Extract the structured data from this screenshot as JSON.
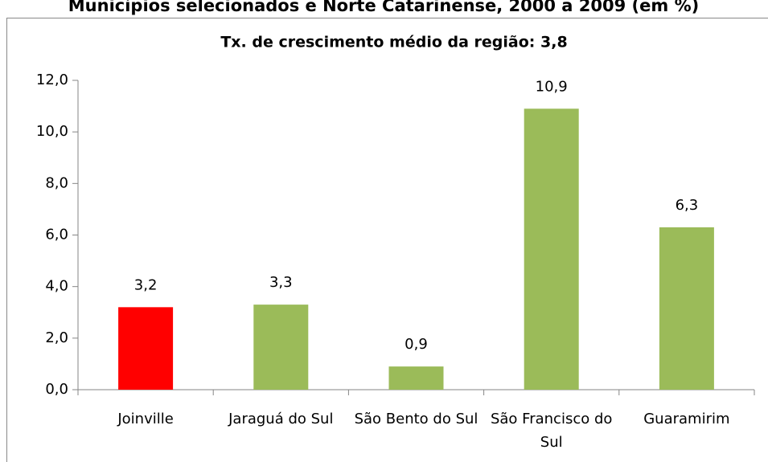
{
  "chart_data": {
    "type": "bar",
    "title": "Municípios selecionados e Norte Catarinense, 2000 a 2009 (em %)",
    "subtitle": "Tx.  de crescimento médio da região: 3,8",
    "categories": [
      "Joinville",
      "Jaraguá do Sul",
      "São Bento do Sul",
      "São Francisco do Sul",
      "Guaramirim"
    ],
    "values": [
      3.2,
      3.3,
      0.9,
      10.9,
      6.3
    ],
    "value_labels": [
      "3,2",
      "3,3",
      "0,9",
      "10,9",
      "6,3"
    ],
    "colors": [
      "#ff0000",
      "#9bbb59",
      "#9bbb59",
      "#9bbb59",
      "#9bbb59"
    ],
    "ylim": [
      0,
      12
    ],
    "yticks": [
      {
        "value": 0,
        "label": "0,0"
      },
      {
        "value": 2,
        "label": "2,0"
      },
      {
        "value": 4,
        "label": "4,0"
      },
      {
        "value": 6,
        "label": "6,0"
      },
      {
        "value": 8,
        "label": "8,0"
      },
      {
        "value": 10,
        "label": "10,0"
      },
      {
        "value": 12,
        "label": "12,0"
      }
    ],
    "grid": false
  }
}
